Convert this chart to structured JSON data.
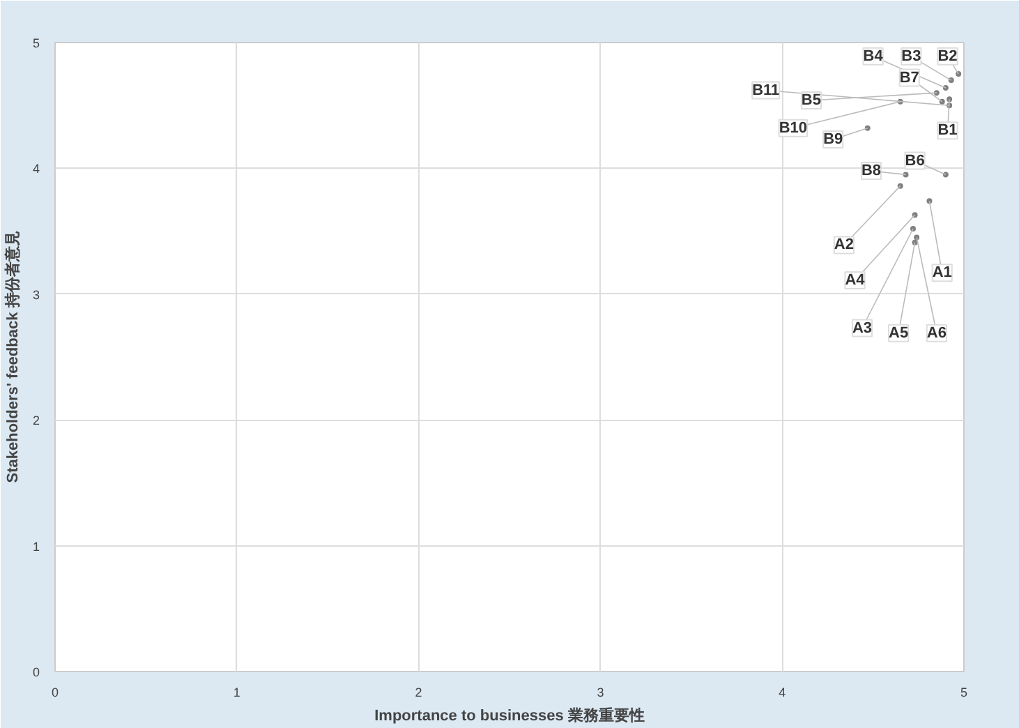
{
  "chart_data": {
    "type": "scatter",
    "xlabel": "Importance to businesses 業務重要性",
    "ylabel": "Stakeholders' feedback 持份者意見",
    "x": [
      4.81,
      4.65,
      4.72,
      4.73,
      4.73,
      4.74,
      4.92,
      4.97,
      4.93,
      4.9,
      4.85,
      4.9,
      4.88,
      4.68,
      4.47,
      4.65,
      4.92
    ],
    "series": [
      {
        "color": "#808080",
        "values": [
          3.74,
          3.86,
          3.52,
          3.63,
          3.41,
          3.45,
          4.55,
          4.75,
          4.7,
          4.64,
          4.6,
          3.95,
          4.53,
          3.95,
          4.32,
          4.53,
          4.5
        ]
      }
    ],
    "annotations": [
      {
        "text": "A1",
        "x": 4.81,
        "y": 3.74
      },
      {
        "text": "A2",
        "x": 4.65,
        "y": 3.86
      },
      {
        "text": "A3",
        "x": 4.72,
        "y": 3.52
      },
      {
        "text": "A4",
        "x": 4.73,
        "y": 3.63
      },
      {
        "text": "A5",
        "x": 4.73,
        "y": 3.41
      },
      {
        "text": "A6",
        "x": 4.74,
        "y": 3.45
      },
      {
        "text": "B1",
        "x": 4.92,
        "y": 4.55
      },
      {
        "text": "B2",
        "x": 4.97,
        "y": 4.75
      },
      {
        "text": "B3",
        "x": 4.93,
        "y": 4.7
      },
      {
        "text": "B4",
        "x": 4.9,
        "y": 4.64
      },
      {
        "text": "B5",
        "x": 4.85,
        "y": 4.6
      },
      {
        "text": "B6",
        "x": 4.9,
        "y": 3.95
      },
      {
        "text": "B7",
        "x": 4.88,
        "y": 4.53
      },
      {
        "text": "B8",
        "x": 4.68,
        "y": 3.95
      },
      {
        "text": "B9",
        "x": 4.47,
        "y": 4.32
      },
      {
        "text": "B10",
        "x": 4.65,
        "y": 4.53
      },
      {
        "text": "B11",
        "x": 4.92,
        "y": 4.5
      }
    ],
    "xlim": [
      0,
      5
    ],
    "ylim": [
      0,
      5
    ],
    "xticks": [
      0,
      1,
      2,
      3,
      4,
      5
    ],
    "yticks": [
      0,
      1,
      2,
      3,
      4,
      5
    ],
    "grid": true,
    "marker": "circle"
  }
}
